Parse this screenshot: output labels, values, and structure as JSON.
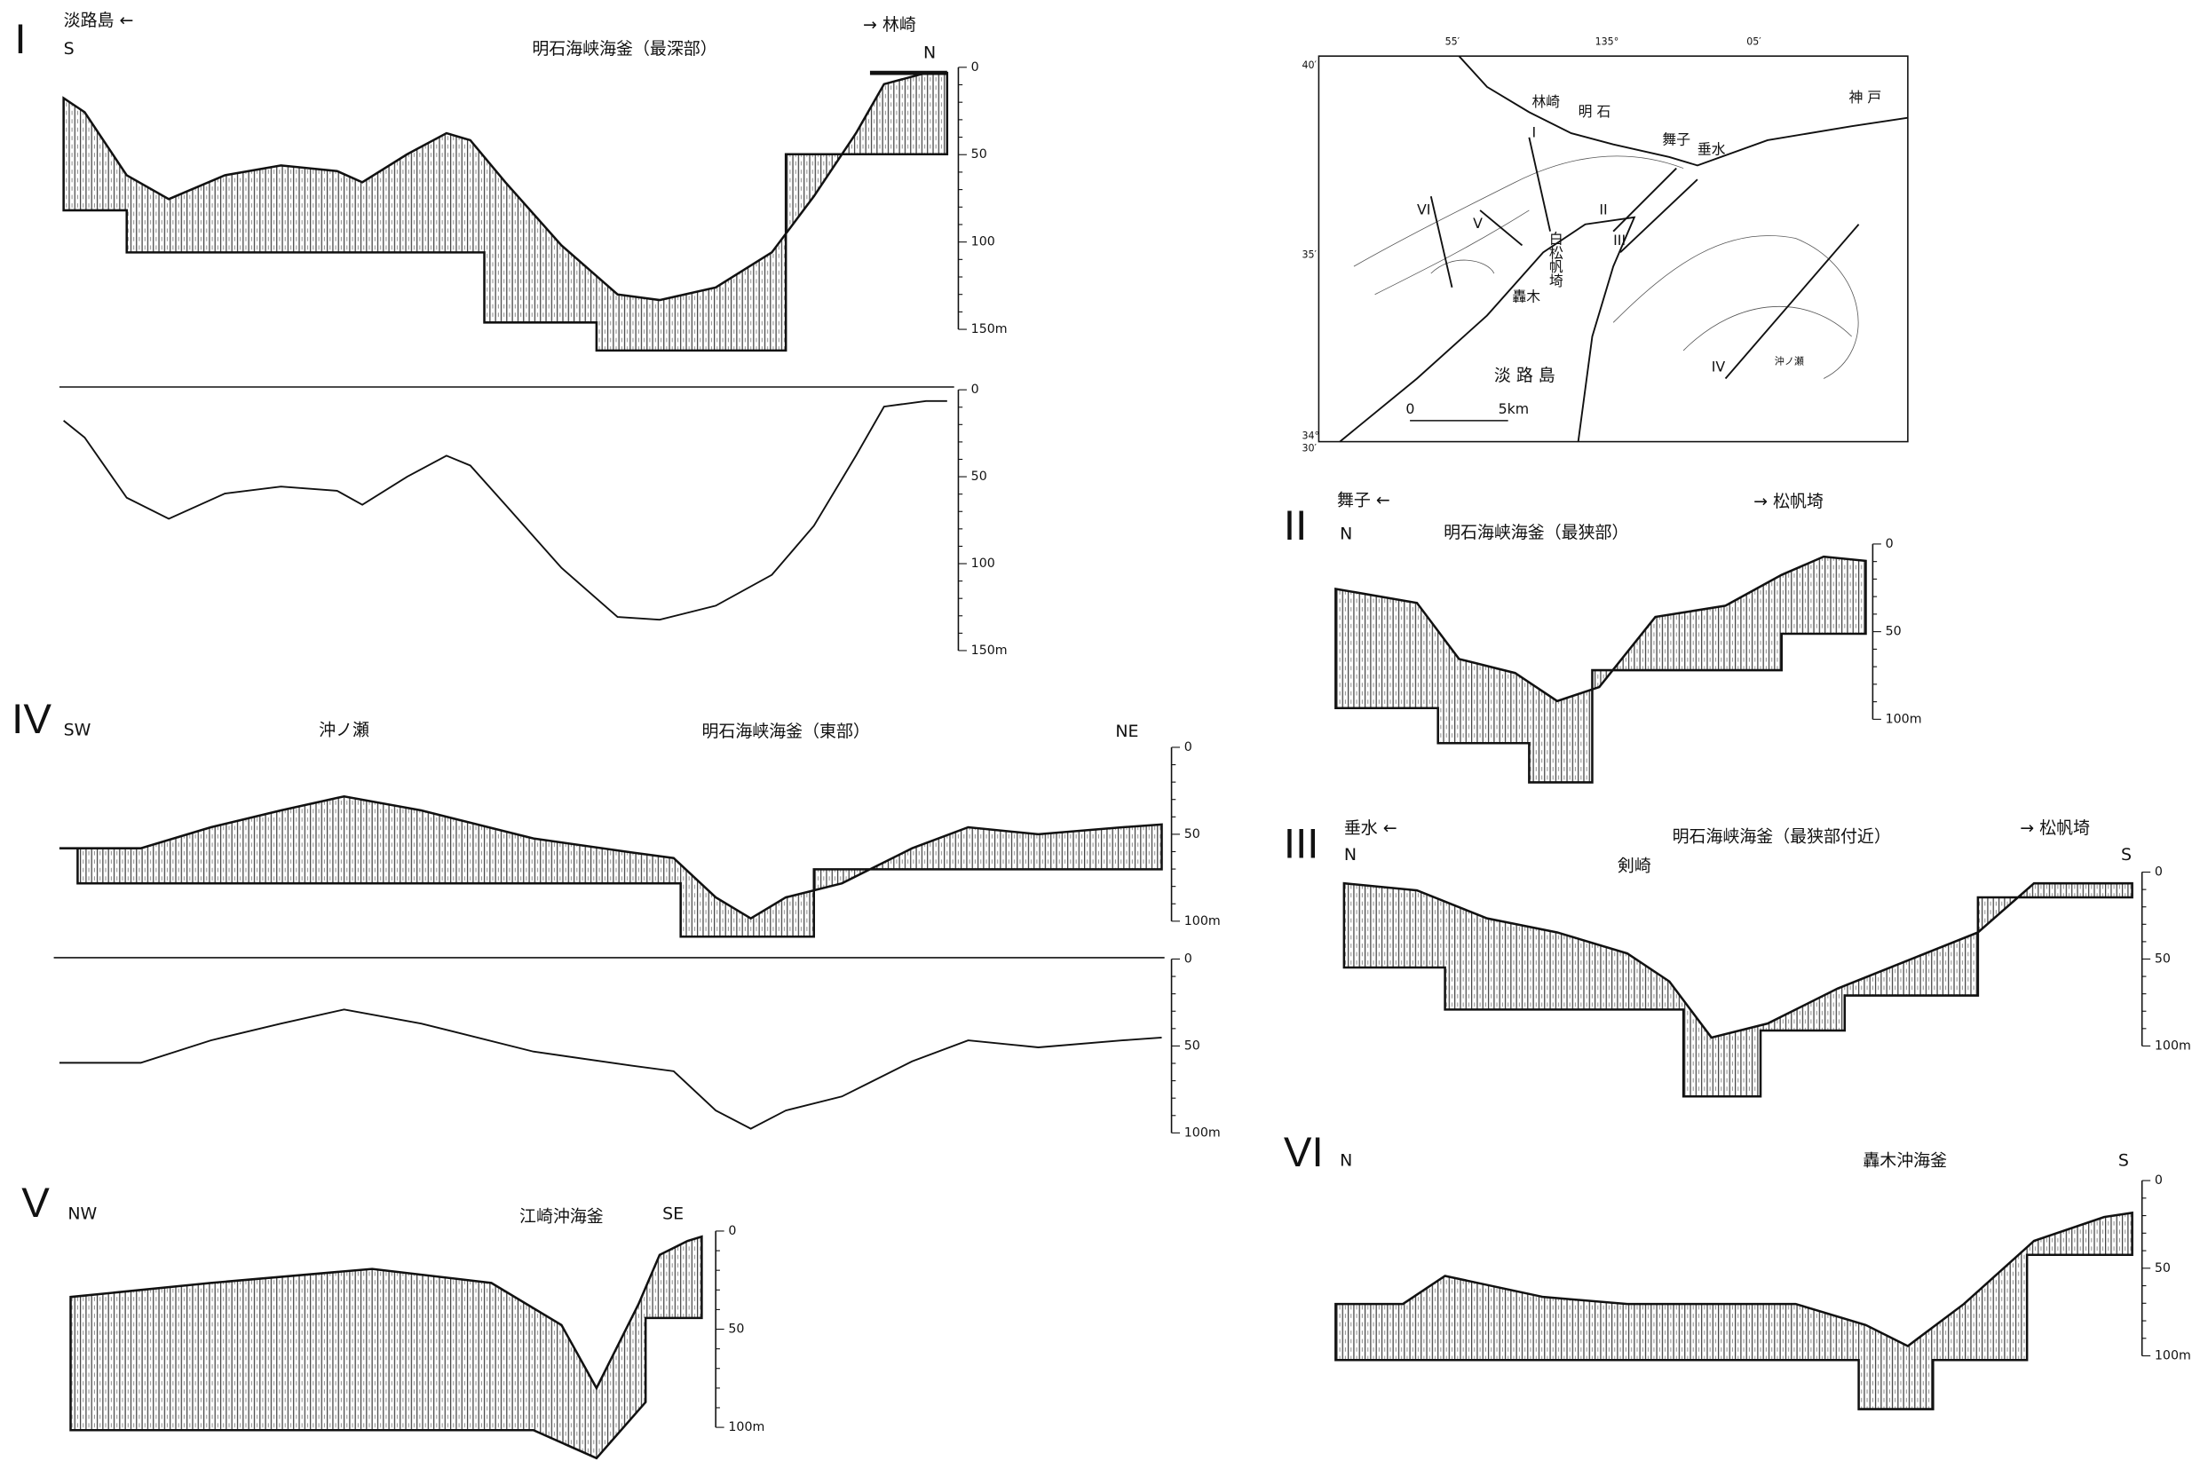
{
  "panels": [
    {
      "numeral": "I",
      "left_place": "淡路島 ←",
      "left_dir": "S",
      "right_place": "→ 林崎",
      "right_dir": "N",
      "title": "明石海峡海釜（最深部）",
      "depth_ticks": [
        "0",
        "50",
        "100",
        "150m"
      ],
      "lower_depth_ticks": [
        "0",
        "50",
        "100",
        "150m"
      ]
    },
    {
      "numeral": "IV",
      "left_dir": "SW",
      "feature": "沖ノ瀬",
      "title": "明石海峡海釜（東部）",
      "right_dir": "NE",
      "depth_ticks": [
        "0",
        "50",
        "100m"
      ],
      "lower_depth_ticks": [
        "0",
        "50",
        "100m"
      ]
    },
    {
      "numeral": "V",
      "left_dir": "NW",
      "title": "江崎沖海釜",
      "right_dir": "SE",
      "depth_ticks": [
        "0",
        "50",
        "100m"
      ]
    },
    {
      "numeral": "II",
      "left_place": "舞子 ←",
      "left_dir": "N",
      "right_place": "→ 松帆埼",
      "title": "明石海峡海釜（最狭部）",
      "depth_ticks": [
        "0",
        "50",
        "100m"
      ]
    },
    {
      "numeral": "III",
      "left_place": "垂水 ←",
      "left_dir": "N",
      "feature": "剣崎",
      "title": "明石海峡海釜（最狭部付近）",
      "right_place": "→ 松帆埼",
      "right_dir": "S",
      "depth_ticks": [
        "0",
        "50",
        "100m"
      ]
    },
    {
      "numeral": "VI",
      "left_dir": "N",
      "title": "轟木沖海釜",
      "right_dir": "S",
      "depth_ticks": [
        "0",
        "50",
        "100m"
      ]
    }
  ],
  "map": {
    "longitudes": [
      "55′",
      "135°",
      "05′"
    ],
    "latitudes": [
      "40′",
      "35′",
      "34°",
      "30′"
    ],
    "places": [
      "林崎",
      "明 石",
      "舞子",
      "垂水",
      "神 戸",
      "白松帆埼",
      "轟木",
      "淡 路 島",
      "沖ノ瀬"
    ],
    "scale": [
      "0",
      "5km"
    ],
    "lines": [
      "I",
      "II",
      "III",
      "IV",
      "V",
      "VI"
    ]
  }
}
